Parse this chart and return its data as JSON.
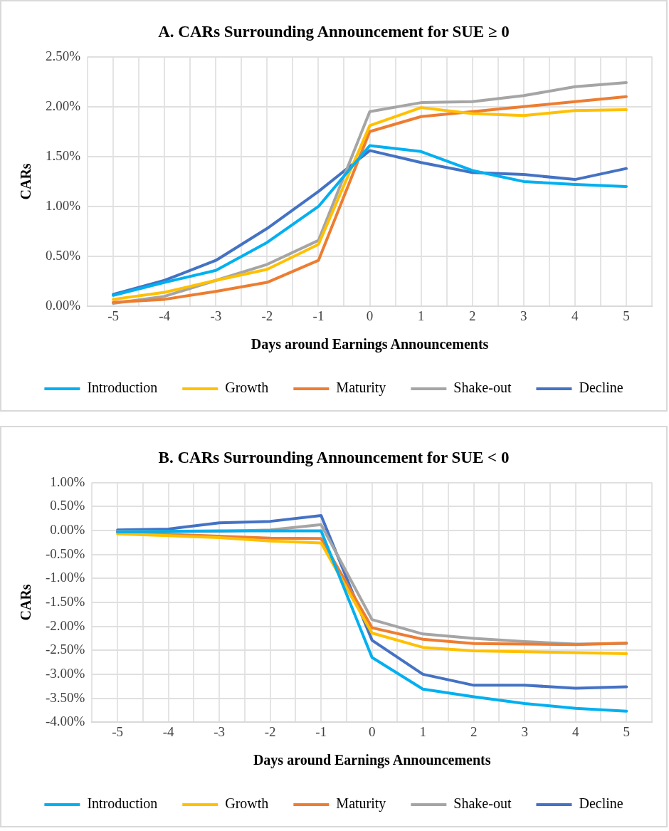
{
  "chart_data": [
    {
      "type": "line",
      "title": "A. CARs Surrounding Announcement for SUE ≥ 0",
      "xlabel": "Days around Earnings Announcements",
      "ylabel": "CARs",
      "x": [
        -5,
        -4,
        -3,
        -2,
        -1,
        0,
        1,
        2,
        3,
        4,
        5
      ],
      "xlim": [
        -5.5,
        5.5
      ],
      "xticks": [
        {
          "value": -5.5,
          "label": null
        },
        -5,
        {
          "value": -4.5,
          "label": null
        },
        -4,
        {
          "value": -3.5,
          "label": null
        },
        -3,
        {
          "value": -2.5,
          "label": null
        },
        -2,
        {
          "value": -1.5,
          "label": null
        },
        -1,
        {
          "value": -0.5,
          "label": null
        },
        0,
        {
          "value": 0.5,
          "label": null
        },
        1,
        {
          "value": 1.5,
          "label": null
        },
        2,
        {
          "value": 2.5,
          "label": null
        },
        3,
        {
          "value": 3.5,
          "label": null
        },
        4,
        {
          "value": 4.5,
          "label": null
        },
        5,
        {
          "value": 5.5,
          "label": null
        }
      ],
      "ylim": [
        0,
        2.5
      ],
      "yticks": [
        {
          "value": 0,
          "label": "0.00%"
        },
        {
          "value": 0.5,
          "label": "0.50%"
        },
        {
          "value": 1,
          "label": "1.00%"
        },
        {
          "value": 1.5,
          "label": "1.50%"
        },
        {
          "value": 2,
          "label": "2.00%"
        },
        {
          "value": 2.5,
          "label": "2.50%"
        }
      ],
      "grid": true,
      "legend": "bottom",
      "marker": "none",
      "line_style": "solid",
      "series": [
        {
          "name": "Introduction",
          "color": "#00b0f0",
          "values": [
            0.11,
            0.24,
            0.36,
            0.64,
            1.0,
            1.61,
            1.55,
            1.36,
            1.25,
            1.22,
            1.2
          ]
        },
        {
          "name": "Growth",
          "color": "#ffc000",
          "values": [
            0.07,
            0.14,
            0.26,
            0.37,
            0.62,
            1.81,
            1.99,
            1.93,
            1.91,
            1.96,
            1.97
          ]
        },
        {
          "name": "Maturity",
          "color": "#ed7d31",
          "values": [
            0.04,
            0.07,
            0.15,
            0.24,
            0.46,
            1.75,
            1.9,
            1.95,
            2.0,
            2.05,
            2.1
          ]
        },
        {
          "name": "Shake-out",
          "color": "#a5a5a5",
          "values": [
            0.03,
            0.1,
            0.26,
            0.42,
            0.66,
            1.95,
            2.04,
            2.05,
            2.11,
            2.2,
            2.24
          ]
        },
        {
          "name": "Decline",
          "color": "#4472c4",
          "values": [
            0.12,
            0.26,
            0.46,
            0.78,
            1.15,
            1.56,
            1.44,
            1.34,
            1.32,
            1.27,
            1.38
          ]
        }
      ]
    },
    {
      "type": "line",
      "title": "B. CARs Surrounding Announcement for SUE < 0",
      "xlabel": "Days around Earnings Announcements",
      "ylabel": "CARs",
      "x": [
        -5,
        -4,
        -3,
        -2,
        -1,
        0,
        1,
        2,
        3,
        4,
        5
      ],
      "xlim": [
        -5.5,
        5.5
      ],
      "xticks": [
        {
          "value": -5.5,
          "label": null
        },
        -5,
        {
          "value": -4.5,
          "label": null
        },
        -4,
        {
          "value": -3.5,
          "label": null
        },
        -3,
        {
          "value": -2.5,
          "label": null
        },
        -2,
        {
          "value": -1.5,
          "label": null
        },
        -1,
        {
          "value": -0.5,
          "label": null
        },
        0,
        {
          "value": 0.5,
          "label": null
        },
        1,
        {
          "value": 1.5,
          "label": null
        },
        2,
        {
          "value": 2.5,
          "label": null
        },
        3,
        {
          "value": 3.5,
          "label": null
        },
        4,
        {
          "value": 4.5,
          "label": null
        },
        5,
        {
          "value": 5.5,
          "label": null
        }
      ],
      "ylim": [
        -4,
        1
      ],
      "yticks": [
        {
          "value": -4,
          "label": "-4.00%"
        },
        {
          "value": -3.5,
          "label": "-3.50%"
        },
        {
          "value": -3,
          "label": "-3.00%"
        },
        {
          "value": -2.5,
          "label": "-2.50%"
        },
        {
          "value": -2,
          "label": "-2.00%"
        },
        {
          "value": -1.5,
          "label": "-1.50%"
        },
        {
          "value": -1,
          "label": "-1.00%"
        },
        {
          "value": -0.5,
          "label": "-0.50%"
        },
        {
          "value": 0,
          "label": "0.00%"
        },
        {
          "value": 0.5,
          "label": "0.50%"
        },
        {
          "value": 1,
          "label": "1.00%"
        }
      ],
      "grid": true,
      "legend": "bottom",
      "marker": "none",
      "line_style": "solid",
      "series": [
        {
          "name": "Introduction",
          "color": "#00b0f0",
          "values": [
            -0.03,
            -0.02,
            -0.01,
            -0.01,
            -0.01,
            -2.65,
            -3.31,
            -3.47,
            -3.61,
            -3.71,
            -3.77
          ]
        },
        {
          "name": "Growth",
          "color": "#ffc000",
          "values": [
            -0.07,
            -0.11,
            -0.15,
            -0.22,
            -0.26,
            -2.14,
            -2.44,
            -2.51,
            -2.53,
            -2.55,
            -2.57
          ]
        },
        {
          "name": "Maturity",
          "color": "#ed7d31",
          "values": [
            -0.04,
            -0.08,
            -0.12,
            -0.16,
            -0.17,
            -2.03,
            -2.27,
            -2.36,
            -2.37,
            -2.38,
            -2.35
          ]
        },
        {
          "name": "Shake-out",
          "color": "#a5a5a5",
          "values": [
            -0.02,
            -0.02,
            -0.02,
            0.01,
            0.12,
            -1.86,
            -2.16,
            -2.25,
            -2.32,
            -2.37,
            -2.36
          ]
        },
        {
          "name": "Decline",
          "color": "#4472c4",
          "values": [
            0.01,
            0.03,
            0.16,
            0.19,
            0.31,
            -2.29,
            -3.0,
            -3.23,
            -3.23,
            -3.29,
            -3.26
          ]
        }
      ]
    }
  ]
}
